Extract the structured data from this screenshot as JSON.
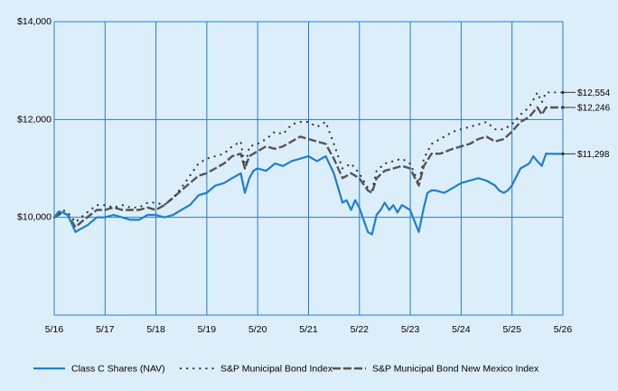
{
  "chart_data": {
    "type": "line",
    "title": "",
    "xlabel": "",
    "ylabel": "",
    "ylim": [
      8000,
      14000
    ],
    "y_ticks": [
      10000,
      12000,
      14000
    ],
    "y_tick_labels": [
      "$10,000",
      "$12,000",
      "$14,000"
    ],
    "x_range": [
      2016.333,
      2026.333
    ],
    "x_ticks": [
      2016.333,
      2017.333,
      2018.333,
      2019.333,
      2020.333,
      2021.333,
      2022.333,
      2023.333,
      2024.333,
      2025.333,
      2026.333
    ],
    "x_tick_labels": [
      "5/16",
      "5/17",
      "5/18",
      "5/19",
      "5/20",
      "5/21",
      "5/22",
      "5/23",
      "5/24",
      "5/25",
      "5/26"
    ],
    "grid": true,
    "legend_position": "bottom",
    "series": [
      {
        "name": "Class C Shares (NAV)",
        "style": "solid",
        "color": "#1f7fd2",
        "end_label": "$11,298",
        "x": [
          2016.333,
          2016.42,
          2016.5,
          2016.6,
          2016.75,
          2016.83,
          2016.92,
          2017.0,
          2017.17,
          2017.33,
          2017.5,
          2017.67,
          2017.83,
          2018.0,
          2018.17,
          2018.33,
          2018.5,
          2018.67,
          2018.83,
          2019.0,
          2019.17,
          2019.33,
          2019.5,
          2019.67,
          2019.83,
          2020.0,
          2020.08,
          2020.17,
          2020.25,
          2020.33,
          2020.5,
          2020.67,
          2020.83,
          2021.0,
          2021.17,
          2021.33,
          2021.5,
          2021.67,
          2021.83,
          2022.0,
          2022.08,
          2022.17,
          2022.25,
          2022.33,
          2022.5,
          2022.58,
          2022.67,
          2022.75,
          2022.83,
          2022.92,
          2023.0,
          2023.08,
          2023.17,
          2023.25,
          2023.33,
          2023.5,
          2023.6,
          2023.67,
          2023.75,
          2023.83,
          2024.0,
          2024.17,
          2024.33,
          2024.5,
          2024.67,
          2024.83,
          2025.0,
          2025.08,
          2025.17,
          2025.25,
          2025.33,
          2025.5,
          2025.67,
          2025.75,
          2025.83,
          2025.92,
          2026.0,
          2026.17,
          2026.333
        ],
        "values": [
          10000,
          10120,
          10100,
          10050,
          9700,
          9750,
          9800,
          9850,
          10000,
          10000,
          10050,
          10000,
          9950,
          9950,
          10050,
          10050,
          10000,
          10050,
          10150,
          10250,
          10450,
          10500,
          10650,
          10700,
          10800,
          10900,
          10500,
          10800,
          10950,
          11000,
          10950,
          11100,
          11050,
          11150,
          11200,
          11250,
          11150,
          11250,
          10900,
          10300,
          10350,
          10150,
          10350,
          10200,
          9700,
          9650,
          10050,
          10150,
          10300,
          10150,
          10250,
          10100,
          10250,
          10200,
          10150,
          9700,
          10200,
          10500,
          10550,
          10550,
          10500,
          10600,
          10700,
          10750,
          10800,
          10750,
          10650,
          10550,
          10500,
          10550,
          10650,
          11000,
          11100,
          11250,
          11150,
          11050,
          11300,
          11298,
          11298
        ]
      },
      {
        "name": "S&P Municipal Bond Index",
        "style": "dotted",
        "color": "#333333",
        "end_label": "$12,554",
        "x": [
          2016.333,
          2016.5,
          2016.6,
          2016.75,
          2016.92,
          2017.17,
          2017.33,
          2017.5,
          2017.67,
          2017.83,
          2018.0,
          2018.17,
          2018.33,
          2018.5,
          2018.67,
          2018.83,
          2019.0,
          2019.17,
          2019.33,
          2019.5,
          2019.67,
          2019.83,
          2020.0,
          2020.08,
          2020.17,
          2020.33,
          2020.5,
          2020.67,
          2020.83,
          2021.0,
          2021.17,
          2021.33,
          2021.5,
          2021.67,
          2021.83,
          2022.0,
          2022.17,
          2022.33,
          2022.5,
          2022.58,
          2022.67,
          2022.83,
          2023.0,
          2023.17,
          2023.33,
          2023.5,
          2023.6,
          2023.75,
          2023.92,
          2024.17,
          2024.33,
          2024.5,
          2024.67,
          2024.83,
          2025.0,
          2025.17,
          2025.33,
          2025.5,
          2025.67,
          2025.83,
          2025.92,
          2026.0,
          2026.17,
          2026.333
        ],
        "values": [
          10000,
          10150,
          10100,
          9900,
          10050,
          10250,
          10250,
          10200,
          10250,
          10200,
          10200,
          10300,
          10300,
          10250,
          10400,
          10600,
          10850,
          11100,
          11200,
          11250,
          11300,
          11450,
          11550,
          11000,
          11450,
          11500,
          11600,
          11750,
          11700,
          11900,
          11950,
          11950,
          11850,
          11950,
          11500,
          11000,
          11100,
          10900,
          10600,
          10550,
          10950,
          11100,
          11150,
          11200,
          11100,
          10700,
          11200,
          11500,
          11600,
          11750,
          11800,
          11850,
          11900,
          11950,
          11800,
          11800,
          11900,
          12100,
          12250,
          12550,
          12350,
          12554,
          12554,
          12554
        ]
      },
      {
        "name": "S&P Municipal Bond New Mexico Index",
        "style": "dashed",
        "color": "#555555",
        "end_label": "$12,246",
        "x": [
          2016.333,
          2016.5,
          2016.6,
          2016.75,
          2016.92,
          2017.17,
          2017.33,
          2017.5,
          2017.67,
          2017.83,
          2018.0,
          2018.17,
          2018.33,
          2018.5,
          2018.67,
          2018.83,
          2019.0,
          2019.17,
          2019.33,
          2019.5,
          2019.67,
          2019.83,
          2020.0,
          2020.08,
          2020.17,
          2020.33,
          2020.5,
          2020.67,
          2020.83,
          2021.0,
          2021.17,
          2021.33,
          2021.5,
          2021.67,
          2021.83,
          2022.0,
          2022.17,
          2022.33,
          2022.5,
          2022.58,
          2022.67,
          2022.83,
          2023.0,
          2023.17,
          2023.33,
          2023.5,
          2023.6,
          2023.75,
          2023.92,
          2024.17,
          2024.33,
          2024.5,
          2024.67,
          2024.83,
          2025.0,
          2025.17,
          2025.33,
          2025.5,
          2025.67,
          2025.83,
          2025.92,
          2026.0,
          2026.17,
          2026.333
        ],
        "values": [
          10000,
          10100,
          10050,
          9800,
          9950,
          10150,
          10150,
          10200,
          10150,
          10150,
          10150,
          10200,
          10150,
          10250,
          10400,
          10550,
          10700,
          10850,
          10900,
          11000,
          11100,
          11250,
          11300,
          11000,
          11250,
          11350,
          11450,
          11400,
          11450,
          11550,
          11650,
          11600,
          11550,
          11500,
          11200,
          10800,
          10900,
          10800,
          10550,
          10500,
          10800,
          10950,
          11000,
          11050,
          11000,
          10650,
          11050,
          11300,
          11300,
          11400,
          11450,
          11500,
          11600,
          11650,
          11550,
          11600,
          11750,
          11950,
          12050,
          12250,
          12100,
          12246,
          12246,
          12246
        ]
      }
    ]
  }
}
